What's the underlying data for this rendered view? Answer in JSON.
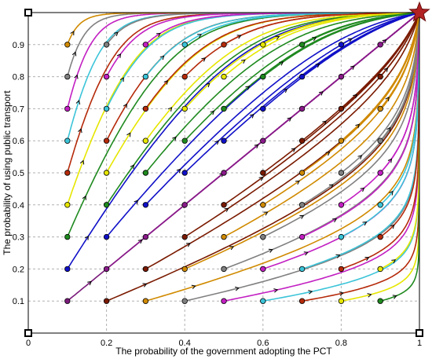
{
  "chart_data": {
    "type": "line",
    "title": "",
    "xlabel": "The probability of the government adopting the PCT",
    "ylabel": "The probability of using public transport",
    "xlim": [
      0,
      1
    ],
    "ylim": [
      0,
      1
    ],
    "grid": true,
    "x_ticks": [
      "0",
      "0.2",
      "0.4",
      "0.6",
      "0.8",
      "1"
    ],
    "y_ticks": [
      "0.1",
      "0.2",
      "0.3",
      "0.4",
      "0.5",
      "0.6",
      "0.7",
      "0.8",
      "0.9"
    ],
    "evolution_curves": [
      {
        "x": 0.1,
        "y": 0.1,
        "color": "#7a1a7a"
      },
      {
        "x": 0.1,
        "y": 0.2,
        "color": "#1010c8"
      },
      {
        "x": 0.1,
        "y": 0.3,
        "color": "#1f8a1f"
      },
      {
        "x": 0.1,
        "y": 0.4,
        "color": "#e6e600"
      },
      {
        "x": 0.1,
        "y": 0.5,
        "color": "#b52a0a"
      },
      {
        "x": 0.1,
        "y": 0.6,
        "color": "#3bc4d8"
      },
      {
        "x": 0.1,
        "y": 0.7,
        "color": "#c21fc2"
      },
      {
        "x": 0.1,
        "y": 0.8,
        "color": "#808080"
      },
      {
        "x": 0.1,
        "y": 0.9,
        "color": "#d08a00"
      },
      {
        "x": 0.2,
        "y": 0.1,
        "color": "#7a1a00"
      },
      {
        "x": 0.2,
        "y": 0.2,
        "color": "#8a1a8a"
      },
      {
        "x": 0.2,
        "y": 0.3,
        "color": "#1010c8"
      },
      {
        "x": 0.2,
        "y": 0.4,
        "color": "#1f8a1f"
      },
      {
        "x": 0.2,
        "y": 0.5,
        "color": "#e6e600"
      },
      {
        "x": 0.2,
        "y": 0.6,
        "color": "#b52a0a"
      },
      {
        "x": 0.2,
        "y": 0.7,
        "color": "#3bc4d8"
      },
      {
        "x": 0.2,
        "y": 0.8,
        "color": "#c21fc2"
      },
      {
        "x": 0.2,
        "y": 0.9,
        "color": "#808080"
      },
      {
        "x": 0.3,
        "y": 0.1,
        "color": "#d08a00"
      },
      {
        "x": 0.3,
        "y": 0.2,
        "color": "#7a1a00"
      },
      {
        "x": 0.3,
        "y": 0.3,
        "color": "#8a1a8a"
      },
      {
        "x": 0.3,
        "y": 0.4,
        "color": "#1010c8"
      },
      {
        "x": 0.3,
        "y": 0.5,
        "color": "#1f8a1f"
      },
      {
        "x": 0.3,
        "y": 0.6,
        "color": "#e6e600"
      },
      {
        "x": 0.3,
        "y": 0.7,
        "color": "#b52a0a"
      },
      {
        "x": 0.3,
        "y": 0.8,
        "color": "#3bc4d8"
      },
      {
        "x": 0.3,
        "y": 0.9,
        "color": "#c21fc2"
      },
      {
        "x": 0.4,
        "y": 0.1,
        "color": "#808080"
      },
      {
        "x": 0.4,
        "y": 0.2,
        "color": "#d08a00"
      },
      {
        "x": 0.4,
        "y": 0.3,
        "color": "#7a1a00"
      },
      {
        "x": 0.4,
        "y": 0.4,
        "color": "#8a1a8a"
      },
      {
        "x": 0.4,
        "y": 0.5,
        "color": "#1010c8"
      },
      {
        "x": 0.4,
        "y": 0.6,
        "color": "#1f8a1f"
      },
      {
        "x": 0.4,
        "y": 0.7,
        "color": "#e6e600"
      },
      {
        "x": 0.4,
        "y": 0.8,
        "color": "#b52a0a"
      },
      {
        "x": 0.4,
        "y": 0.9,
        "color": "#3bc4d8"
      },
      {
        "x": 0.5,
        "y": 0.1,
        "color": "#c21fc2"
      },
      {
        "x": 0.5,
        "y": 0.2,
        "color": "#808080"
      },
      {
        "x": 0.5,
        "y": 0.3,
        "color": "#d08a00"
      },
      {
        "x": 0.5,
        "y": 0.4,
        "color": "#7a1a00"
      },
      {
        "x": 0.5,
        "y": 0.5,
        "color": "#8a1a8a"
      },
      {
        "x": 0.5,
        "y": 0.6,
        "color": "#1010c8"
      },
      {
        "x": 0.5,
        "y": 0.7,
        "color": "#1f8a1f"
      },
      {
        "x": 0.5,
        "y": 0.8,
        "color": "#e6e600"
      },
      {
        "x": 0.5,
        "y": 0.9,
        "color": "#b52a0a"
      },
      {
        "x": 0.6,
        "y": 0.1,
        "color": "#3bc4d8"
      },
      {
        "x": 0.6,
        "y": 0.2,
        "color": "#c21fc2"
      },
      {
        "x": 0.6,
        "y": 0.3,
        "color": "#808080"
      },
      {
        "x": 0.6,
        "y": 0.4,
        "color": "#d08a00"
      },
      {
        "x": 0.6,
        "y": 0.5,
        "color": "#7a1a00"
      },
      {
        "x": 0.6,
        "y": 0.6,
        "color": "#8a1a8a"
      },
      {
        "x": 0.6,
        "y": 0.7,
        "color": "#1010c8"
      },
      {
        "x": 0.6,
        "y": 0.8,
        "color": "#1f8a1f"
      },
      {
        "x": 0.6,
        "y": 0.9,
        "color": "#e6e600"
      },
      {
        "x": 0.7,
        "y": 0.1,
        "color": "#b52a0a"
      },
      {
        "x": 0.7,
        "y": 0.2,
        "color": "#3bc4d8"
      },
      {
        "x": 0.7,
        "y": 0.3,
        "color": "#c21fc2"
      },
      {
        "x": 0.7,
        "y": 0.4,
        "color": "#808080"
      },
      {
        "x": 0.7,
        "y": 0.5,
        "color": "#d08a00"
      },
      {
        "x": 0.7,
        "y": 0.6,
        "color": "#7a1a00"
      },
      {
        "x": 0.7,
        "y": 0.7,
        "color": "#8a1a8a"
      },
      {
        "x": 0.7,
        "y": 0.8,
        "color": "#1010c8"
      },
      {
        "x": 0.7,
        "y": 0.9,
        "color": "#1f8a1f"
      },
      {
        "x": 0.8,
        "y": 0.1,
        "color": "#e6e600"
      },
      {
        "x": 0.8,
        "y": 0.2,
        "color": "#b52a0a"
      },
      {
        "x": 0.8,
        "y": 0.3,
        "color": "#3bc4d8"
      },
      {
        "x": 0.8,
        "y": 0.4,
        "color": "#c21fc2"
      },
      {
        "x": 0.8,
        "y": 0.5,
        "color": "#808080"
      },
      {
        "x": 0.8,
        "y": 0.6,
        "color": "#d08a00"
      },
      {
        "x": 0.8,
        "y": 0.7,
        "color": "#7a1a00"
      },
      {
        "x": 0.8,
        "y": 0.8,
        "color": "#8a1a8a"
      },
      {
        "x": 0.8,
        "y": 0.9,
        "color": "#1010c8"
      },
      {
        "x": 0.9,
        "y": 0.1,
        "color": "#1f8a1f"
      },
      {
        "x": 0.9,
        "y": 0.2,
        "color": "#e6e600"
      },
      {
        "x": 0.9,
        "y": 0.3,
        "color": "#b52a0a"
      },
      {
        "x": 0.9,
        "y": 0.4,
        "color": "#3bc4d8"
      },
      {
        "x": 0.9,
        "y": 0.5,
        "color": "#c21fc2"
      },
      {
        "x": 0.9,
        "y": 0.6,
        "color": "#808080"
      },
      {
        "x": 0.9,
        "y": 0.7,
        "color": "#d08a00"
      },
      {
        "x": 0.9,
        "y": 0.8,
        "color": "#7a1a00"
      },
      {
        "x": 0.9,
        "y": 0.9,
        "color": "#8a1a8a"
      }
    ],
    "stable_point": {
      "x": 1,
      "y": 1,
      "color": "#b22222"
    },
    "corner_points": [
      {
        "x": 0,
        "y": 0
      },
      {
        "x": 0,
        "y": 1
      },
      {
        "x": 1,
        "y": 0
      },
      {
        "x": 1,
        "y": 1
      }
    ]
  }
}
